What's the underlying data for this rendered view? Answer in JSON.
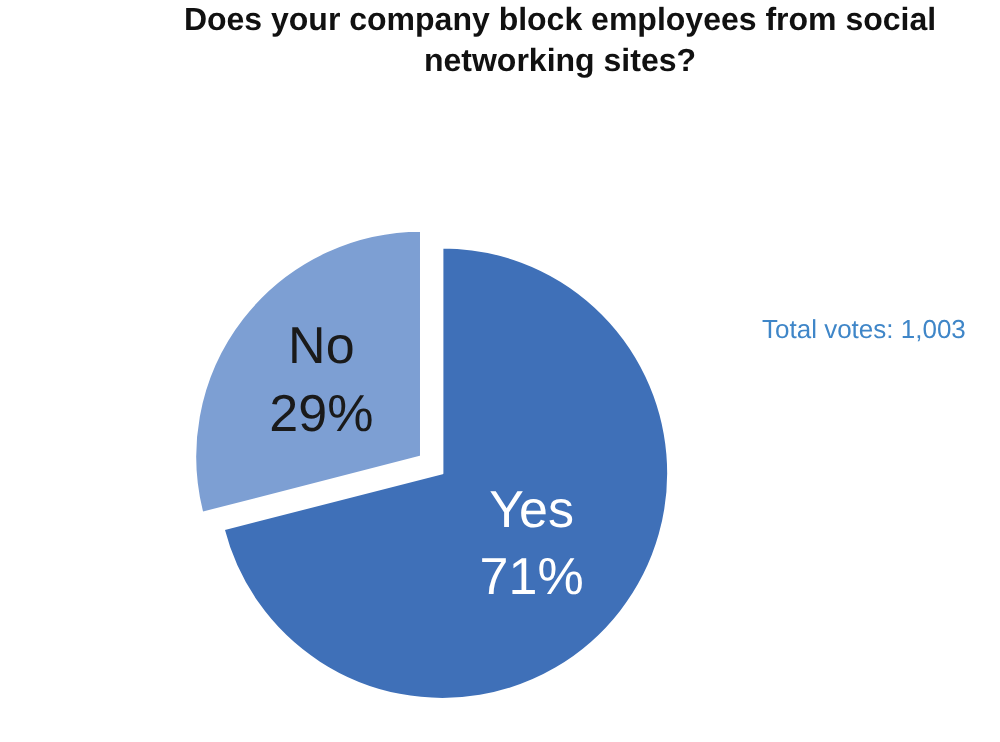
{
  "chart_data": {
    "type": "pie",
    "title": "Does your company block employees from social networking sites?",
    "categories": [
      "Yes",
      "No"
    ],
    "values": [
      71,
      29
    ],
    "colors": [
      "#3f70b8",
      "#7d9fd3"
    ],
    "value_labels": [
      "71%",
      "29%"
    ],
    "annotations": [
      "Total votes: 1,003"
    ],
    "legend": false
  }
}
